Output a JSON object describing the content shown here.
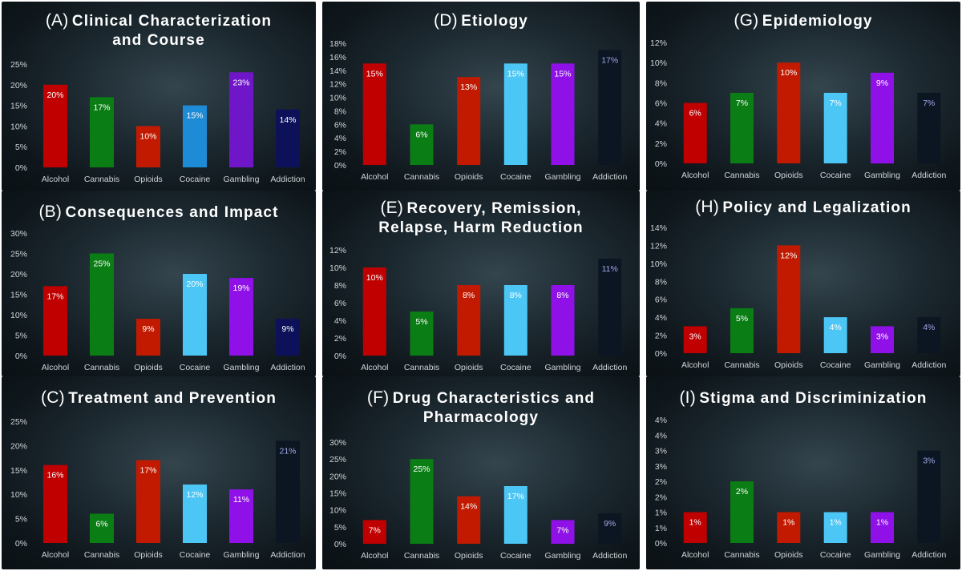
{
  "colors": {
    "Alcohol": "#c00000",
    "Cannabis": "#0b7d15",
    "Opioids": "#c21a00",
    "CocaineA": "#1e8bd6",
    "Cocaine": "#4cc6f5",
    "Gambling": "#8f11e8",
    "GamblingA": "#6f17c8",
    "Addiction": "#0d1159",
    "AddictionFaint": "#0c1622",
    "labelLight": "#ffffff",
    "labelFaint": "#9fa8e8"
  },
  "chart_data": [
    {
      "id": "A",
      "type": "bar",
      "title_prefix": "(A)",
      "title_main": "Clinical Characterization and Course",
      "title_lines": [
        "Clinical Characterization",
        "and Course"
      ],
      "categories": [
        "Alcohol",
        "Cannabis",
        "Opioids",
        "Cocaine",
        "Gambling",
        "Addiction"
      ],
      "values": [
        20,
        17,
        10,
        15,
        23,
        14
      ],
      "data_labels": [
        "20%",
        "17%",
        "10%",
        "15%",
        "23%",
        "14%"
      ],
      "ylim": [
        0,
        25
      ],
      "yticks": [
        "0%",
        "5%",
        "10%",
        "15%",
        "20%",
        "25%"
      ],
      "bar_colors": [
        "#c00000",
        "#0b7d15",
        "#c21a00",
        "#1e8bd6",
        "#6f17c8",
        "#0d1159"
      ],
      "xlabel": "",
      "ylabel": ""
    },
    {
      "id": "B",
      "type": "bar",
      "title_prefix": "(B)",
      "title_main": "Consequences and Impact",
      "title_lines": [
        "Consequences and Impact"
      ],
      "categories": [
        "Alcohol",
        "Cannabis",
        "Opioids",
        "Cocaine",
        "Gambling",
        "Addiction"
      ],
      "values": [
        17,
        25,
        9,
        20,
        19,
        9
      ],
      "data_labels": [
        "17%",
        "25%",
        "9%",
        "20%",
        "19%",
        "9%"
      ],
      "ylim": [
        0,
        30
      ],
      "yticks": [
        "0%",
        "5%",
        "10%",
        "15%",
        "20%",
        "25%",
        "30%"
      ],
      "bar_colors": [
        "#c00000",
        "#0b7d15",
        "#c21a00",
        "#4cc6f5",
        "#8f11e8",
        "#0d1159"
      ],
      "xlabel": "",
      "ylabel": ""
    },
    {
      "id": "C",
      "type": "bar",
      "title_prefix": "(C)",
      "title_main": "Treatment and Prevention",
      "title_lines": [
        "Treatment and Prevention"
      ],
      "categories": [
        "Alcohol",
        "Cannabis",
        "Opioids",
        "Cocaine",
        "Gambling",
        "Addiction"
      ],
      "values": [
        16,
        6,
        17,
        12,
        11,
        21
      ],
      "data_labels": [
        "16%",
        "6%",
        "17%",
        "12%",
        "11%",
        "21%"
      ],
      "ylim": [
        0,
        25
      ],
      "yticks": [
        "0%",
        "5%",
        "10%",
        "15%",
        "20%",
        "25%"
      ],
      "bar_colors": [
        "#c00000",
        "#0b7d15",
        "#c21a00",
        "#4cc6f5",
        "#8f11e8",
        "#0c1622"
      ],
      "xlabel": "",
      "ylabel": ""
    },
    {
      "id": "D",
      "type": "bar",
      "title_prefix": "(D)",
      "title_main": "Etiology",
      "title_lines": [
        "Etiology"
      ],
      "categories": [
        "Alcohol",
        "Cannabis",
        "Opioids",
        "Cocaine",
        "Gambling",
        "Addiction"
      ],
      "values": [
        15,
        6,
        13,
        15,
        15,
        17
      ],
      "data_labels": [
        "15%",
        "6%",
        "13%",
        "15%",
        "15%",
        "17%"
      ],
      "ylim": [
        0,
        18
      ],
      "yticks": [
        "0%",
        "2%",
        "4%",
        "6%",
        "8%",
        "10%",
        "12%",
        "14%",
        "16%",
        "18%"
      ],
      "bar_colors": [
        "#c00000",
        "#0b7d15",
        "#c21a00",
        "#4cc6f5",
        "#8f11e8",
        "#0c1622"
      ],
      "xlabel": "",
      "ylabel": ""
    },
    {
      "id": "E",
      "type": "bar",
      "title_prefix": "(E)",
      "title_main": "Recovery, Remission, Relapse, Harm Reduction",
      "title_lines": [
        "Recovery, Remission,",
        "Relapse, Harm Reduction"
      ],
      "categories": [
        "Alcohol",
        "Cannabis",
        "Opioids",
        "Cocaine",
        "Gambling",
        "Addiction"
      ],
      "values": [
        10,
        5,
        8,
        8,
        8,
        11
      ],
      "data_labels": [
        "10%",
        "5%",
        "8%",
        "8%",
        "8%",
        "11%"
      ],
      "ylim": [
        0,
        12
      ],
      "yticks": [
        "0%",
        "2%",
        "4%",
        "6%",
        "8%",
        "10%",
        "12%"
      ],
      "bar_colors": [
        "#c00000",
        "#0b7d15",
        "#c21a00",
        "#4cc6f5",
        "#8f11e8",
        "#0c1622"
      ],
      "xlabel": "",
      "ylabel": ""
    },
    {
      "id": "F",
      "type": "bar",
      "title_prefix": "(F)",
      "title_main": "Drug Characteristics and Pharmacology",
      "title_lines": [
        "Drug Characteristics and",
        "Pharmacology"
      ],
      "categories": [
        "Alcohol",
        "Cannabis",
        "Opioids",
        "Cocaine",
        "Gambling",
        "Addiction"
      ],
      "values": [
        7,
        25,
        14,
        17,
        7,
        9
      ],
      "data_labels": [
        "7%",
        "25%",
        "14%",
        "17%",
        "7%",
        "9%"
      ],
      "ylim": [
        0,
        30
      ],
      "yticks": [
        "0%",
        "5%",
        "10%",
        "15%",
        "20%",
        "25%",
        "30%"
      ],
      "bar_colors": [
        "#c00000",
        "#0b7d15",
        "#c21a00",
        "#4cc6f5",
        "#8f11e8",
        "#0c1622"
      ],
      "xlabel": "",
      "ylabel": ""
    },
    {
      "id": "G",
      "type": "bar",
      "title_prefix": "(G)",
      "title_main": "Epidemiology",
      "title_lines": [
        "Epidemiology"
      ],
      "categories": [
        "Alcohol",
        "Cannabis",
        "Opioids",
        "Cocaine",
        "Gambling",
        "Addiction"
      ],
      "values": [
        6,
        7,
        10,
        7,
        9,
        7
      ],
      "data_labels": [
        "6%",
        "7%",
        "10%",
        "7%",
        "9%",
        "7%"
      ],
      "ylim": [
        0,
        12
      ],
      "yticks": [
        "0%",
        "2%",
        "4%",
        "6%",
        "8%",
        "10%",
        "12%"
      ],
      "bar_colors": [
        "#c00000",
        "#0b7d15",
        "#c21a00",
        "#4cc6f5",
        "#8f11e8",
        "#0c1622"
      ],
      "xlabel": "",
      "ylabel": ""
    },
    {
      "id": "H",
      "type": "bar",
      "title_prefix": "(H)",
      "title_main": "Policy and Legalization",
      "title_lines": [
        "Policy and Legalization"
      ],
      "categories": [
        "Alcohol",
        "Cannabis",
        "Opioids",
        "Cocaine",
        "Gambling",
        "Addiction"
      ],
      "values": [
        3,
        5,
        12,
        4,
        3,
        4
      ],
      "data_labels": [
        "3%",
        "5%",
        "12%",
        "4%",
        "3%",
        "4%"
      ],
      "ylim": [
        0,
        14
      ],
      "yticks": [
        "0%",
        "2%",
        "4%",
        "6%",
        "8%",
        "10%",
        "12%",
        "14%"
      ],
      "bar_colors": [
        "#c00000",
        "#0b7d15",
        "#c21a00",
        "#4cc6f5",
        "#8f11e8",
        "#0c1622"
      ],
      "xlabel": "",
      "ylabel": ""
    },
    {
      "id": "I",
      "type": "bar",
      "title_prefix": "(I)",
      "title_main": "Stigma and Discriminization",
      "title_lines": [
        "Stigma and Discriminization"
      ],
      "categories": [
        "Alcohol",
        "Cannabis",
        "Opioids",
        "Cocaine",
        "Gambling",
        "Addiction"
      ],
      "values": [
        1,
        2,
        1,
        1,
        1,
        3
      ],
      "data_labels": [
        "1%",
        "2%",
        "1%",
        "1%",
        "1%",
        "3%"
      ],
      "ylim": [
        0,
        4
      ],
      "yticks": [
        "0%",
        "1%",
        "1%",
        "2%",
        "2%",
        "3%",
        "3%",
        "4%",
        "4%"
      ],
      "bar_colors": [
        "#c00000",
        "#0b7d15",
        "#c21a00",
        "#4cc6f5",
        "#8f11e8",
        "#0c1622"
      ],
      "xlabel": "",
      "ylabel": ""
    }
  ]
}
